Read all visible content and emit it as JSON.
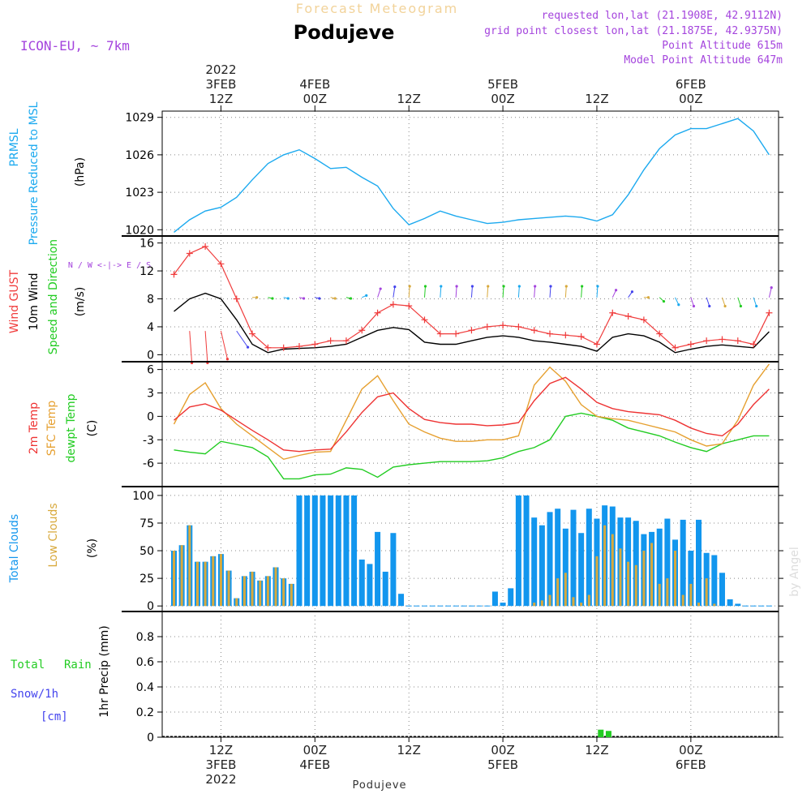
{
  "header": {
    "top_title": "Forecast Meteogram",
    "location": "Podujeve",
    "model": "ICON-EU, ~ 7km",
    "requested": "requested lon,lat (21.1908E, 42.9112N)",
    "grid_point": "grid point closest lon,lat (21.1875E, 42.9375N)",
    "point_altitude": "Point Altitude 615m",
    "model_altitude": "Model Point Altitude 647m",
    "footer_location": "Podujeve",
    "watermark": "by Angel"
  },
  "colors": {
    "pressure": "#1ba9ef",
    "gust": "#f03c3c",
    "wind": "#000000",
    "temp2m": "#ee3333",
    "sfc": "#e6a030",
    "dew": "#22cc22",
    "total_clouds": "#1296ee",
    "low_clouds": "#d8a93c",
    "rain": "#22cc22",
    "snow": "#4444ee",
    "violet": "#a444dd"
  },
  "chart_data": [
    {
      "type": "line",
      "title": "PRMSL Pressure Reduced to MSL",
      "ylabel": "(hPa)",
      "ylabel_lines": [
        "PRMSL",
        "Pressure Reduced to MSL"
      ],
      "ylim": [
        1019.5,
        1029.5
      ],
      "yticks": [
        "1020",
        "1023",
        "1026",
        "1029"
      ],
      "x_hours": [
        0,
        2,
        4,
        6,
        8,
        10,
        12,
        14,
        16,
        18,
        20,
        22,
        24,
        26,
        28,
        30,
        32,
        34,
        36,
        38,
        40,
        42,
        44,
        46,
        48,
        50,
        52,
        54,
        56,
        58,
        60,
        62,
        64,
        66,
        68,
        70,
        72,
        74,
        76
      ],
      "series": [
        {
          "name": "PRMSL",
          "values": [
            1019.8,
            1020.8,
            1021.5,
            1021.8,
            1022.6,
            1024.0,
            1025.3,
            1026.0,
            1026.4,
            1025.7,
            1024.9,
            1025.0,
            1024.2,
            1023.5,
            1021.7,
            1020.4,
            1020.9,
            1021.5,
            1021.1,
            1020.8,
            1020.5,
            1020.6,
            1020.8,
            1020.9,
            1021.0,
            1021.1,
            1021.0,
            1020.7,
            1021.2,
            1022.8,
            1024.8,
            1026.5,
            1027.6,
            1028.1,
            1028.1,
            1028.5,
            1028.9,
            1027.9,
            1026.0
          ]
        }
      ]
    },
    {
      "type": "line",
      "title": "Wind GUST / 10m Wind Speed and Direction",
      "ylabel": "(m/s)",
      "ylabel_lines": [
        "Wind GUST",
        "10m Wind",
        "Speed and Direction"
      ],
      "ylim": [
        -1,
        17
      ],
      "yticks": [
        "0",
        "4",
        "8",
        "12",
        "16"
      ],
      "compass": "N / W <-|-> E / S",
      "x_hours": [
        0,
        2,
        4,
        6,
        8,
        10,
        12,
        14,
        16,
        18,
        20,
        22,
        24,
        26,
        28,
        30,
        32,
        34,
        36,
        38,
        40,
        42,
        44,
        46,
        48,
        50,
        52,
        54,
        56,
        58,
        60,
        62,
        64,
        66,
        68,
        70,
        72,
        74,
        76
      ],
      "series": [
        {
          "name": "Wind GUST",
          "values": [
            11.5,
            14.5,
            15.5,
            13.0,
            8.0,
            3.0,
            1.0,
            1.0,
            1.2,
            1.5,
            2.0,
            2.0,
            3.5,
            6.0,
            7.2,
            7.0,
            5.0,
            3.0,
            3.0,
            3.5,
            4.0,
            4.2,
            4.0,
            3.5,
            3.0,
            2.8,
            2.6,
            1.5,
            6.0,
            5.5,
            5.0,
            3.0,
            1.0,
            1.5,
            2.0,
            2.2,
            2.0,
            1.5,
            6.0
          ]
        },
        {
          "name": "10m Wind",
          "values": [
            6.2,
            8.0,
            8.8,
            8.0,
            5.0,
            1.5,
            0.3,
            0.8,
            0.9,
            1.0,
            1.2,
            1.5,
            2.5,
            3.5,
            3.9,
            3.6,
            1.8,
            1.5,
            1.5,
            2.0,
            2.5,
            2.7,
            2.5,
            2.0,
            1.8,
            1.5,
            1.2,
            0.5,
            2.5,
            3.0,
            2.7,
            1.8,
            0.3,
            0.8,
            1.2,
            1.4,
            1.2,
            1.0,
            3.3
          ]
        }
      ],
      "wind_direction_deg": [
        10,
        10,
        10,
        30,
        60,
        90,
        95,
        95,
        95,
        95,
        95,
        95,
        80,
        40,
        20,
        10,
        10,
        10,
        10,
        10,
        10,
        10,
        10,
        10,
        10,
        10,
        10,
        10,
        50,
        60,
        90,
        110,
        130,
        140,
        140,
        140,
        140,
        140,
        30
      ]
    },
    {
      "type": "line",
      "title": "2m Temp / SFC Temp / dewpt Temp",
      "ylabel": "(C)",
      "ylabel_lines": [
        "2m Temp",
        "SFC Temp",
        "dewpt Temp"
      ],
      "ylim": [
        -9,
        7
      ],
      "yticks": [
        "-6",
        "-3",
        "0",
        "3",
        "6"
      ],
      "x_hours": [
        0,
        2,
        4,
        6,
        8,
        10,
        12,
        14,
        16,
        18,
        20,
        22,
        24,
        26,
        28,
        30,
        32,
        34,
        36,
        38,
        40,
        42,
        44,
        46,
        48,
        50,
        52,
        54,
        56,
        58,
        60,
        62,
        64,
        66,
        68,
        70,
        72,
        74,
        76
      ],
      "series": [
        {
          "name": "2m Temp",
          "values": [
            -0.5,
            1.2,
            1.6,
            0.8,
            -0.5,
            -1.8,
            -3.0,
            -4.3,
            -4.5,
            -4.3,
            -4.2,
            -2.0,
            0.5,
            2.5,
            3.0,
            1.0,
            -0.4,
            -0.8,
            -1.0,
            -1.0,
            -1.2,
            -1.1,
            -0.8,
            2.0,
            4.2,
            5.0,
            3.5,
            1.8,
            1.0,
            0.6,
            0.4,
            0.2,
            -0.5,
            -1.5,
            -2.2,
            -2.5,
            -1.0,
            1.5,
            3.5
          ]
        },
        {
          "name": "SFC Temp",
          "values": [
            -1.0,
            2.8,
            4.3,
            1.0,
            -1.0,
            -2.5,
            -4.0,
            -5.5,
            -5.0,
            -4.6,
            -4.5,
            -0.5,
            3.5,
            5.2,
            2.0,
            -1.0,
            -2.0,
            -2.8,
            -3.2,
            -3.2,
            -3.0,
            -3.0,
            -2.5,
            4.0,
            6.3,
            4.5,
            1.5,
            0.0,
            -0.3,
            -0.5,
            -1.0,
            -1.5,
            -2.0,
            -3.0,
            -3.8,
            -3.5,
            -0.5,
            4.0,
            6.7
          ]
        },
        {
          "name": "dewpt Temp",
          "values": [
            -4.3,
            -4.6,
            -4.8,
            -3.2,
            -3.6,
            -4.0,
            -5.2,
            -8.0,
            -8.0,
            -7.5,
            -7.4,
            -6.6,
            -6.8,
            -7.8,
            -6.5,
            -6.2,
            -6.0,
            -5.8,
            -5.8,
            -5.8,
            -5.7,
            -5.3,
            -4.5,
            -4.0,
            -3.0,
            0.0,
            0.4,
            0.0,
            -0.5,
            -1.5,
            -2.0,
            -2.5,
            -3.3,
            -4.0,
            -4.5,
            -3.5,
            -3.0,
            -2.5,
            -2.5
          ]
        }
      ]
    },
    {
      "type": "bar",
      "title": "Total Clouds / Low Clouds",
      "ylabel": "(%)",
      "ylabel_lines": [
        "Total Clouds",
        "Low Clouds"
      ],
      "ylim": [
        -5,
        108
      ],
      "yticks": [
        "0",
        "25",
        "50",
        "75",
        "100"
      ],
      "x_hours": [
        0,
        1,
        2,
        3,
        4,
        5,
        6,
        7,
        8,
        9,
        10,
        11,
        12,
        13,
        14,
        15,
        16,
        17,
        18,
        19,
        20,
        21,
        22,
        23,
        24,
        25,
        26,
        27,
        28,
        29,
        30,
        31,
        32,
        33,
        34,
        35,
        36,
        37,
        38,
        39,
        40,
        41,
        42,
        43,
        44,
        45,
        46,
        47,
        48,
        49,
        50,
        51,
        52,
        53,
        54,
        55,
        56,
        57,
        58,
        59,
        60,
        61,
        62,
        63,
        64,
        65,
        66,
        67,
        68,
        69,
        70,
        71,
        72,
        73,
        74,
        75,
        76
      ],
      "series": [
        {
          "name": "Total Clouds",
          "values": [
            50,
            55,
            73,
            40,
            40,
            45,
            47,
            32,
            7,
            27,
            31,
            23,
            27,
            35,
            25,
            20,
            100,
            100,
            100,
            100,
            100,
            100,
            100,
            100,
            42,
            38,
            67,
            31,
            66,
            11,
            0,
            0,
            0,
            0,
            0,
            0,
            0,
            0,
            0,
            0,
            0,
            13,
            3,
            16,
            100,
            100,
            80,
            73,
            85,
            88,
            70,
            87,
            66,
            88,
            79,
            91,
            90,
            80,
            80,
            77,
            65,
            67,
            70,
            79,
            60,
            78,
            50,
            78,
            48,
            46,
            30,
            6,
            2,
            0,
            0,
            0,
            0
          ]
        },
        {
          "name": "Low Clouds",
          "values": [
            50,
            55,
            73,
            40,
            40,
            45,
            47,
            32,
            7,
            27,
            31,
            23,
            27,
            35,
            25,
            20,
            0,
            0,
            0,
            0,
            0,
            0,
            0,
            0,
            0,
            0,
            0,
            0,
            0,
            0,
            0,
            0,
            0,
            0,
            0,
            0,
            0,
            0,
            0,
            0,
            0,
            0,
            0,
            0,
            0,
            0,
            3,
            5,
            10,
            25,
            30,
            8,
            3,
            10,
            45,
            73,
            65,
            52,
            40,
            37,
            50,
            57,
            20,
            25,
            50,
            10,
            20,
            3,
            25,
            2,
            0,
            0,
            0,
            0,
            0,
            0,
            0
          ]
        }
      ]
    },
    {
      "type": "bar",
      "title": "1hr Precip (mm)",
      "ylabel": "1hr Precip (mm)",
      "ylabel_lines": [
        "Total",
        "Rain",
        "Snow/1h",
        "[cm]"
      ],
      "ylim": [
        0,
        1.0
      ],
      "yticks": [
        "0",
        "0.2",
        "0.4",
        "0.6",
        "0.8"
      ],
      "bars": [
        {
          "x_hour": 54.5,
          "value": 0.06,
          "series": "Total Rain"
        },
        {
          "x_hour": 55.5,
          "value": 0.05,
          "series": "Total Rain"
        }
      ]
    }
  ],
  "time_axis": {
    "top_ticks": [
      {
        "hour": 6,
        "lines": [
          "2022",
          "3FEB",
          "12Z"
        ]
      },
      {
        "hour": 18,
        "lines": [
          "4FEB",
          "00Z"
        ]
      },
      {
        "hour": 30,
        "lines": [
          "12Z"
        ]
      },
      {
        "hour": 42,
        "lines": [
          "5FEB",
          "00Z"
        ]
      },
      {
        "hour": 54,
        "lines": [
          "12Z"
        ]
      },
      {
        "hour": 66,
        "lines": [
          "6FEB",
          "00Z"
        ]
      }
    ],
    "bottom_ticks": [
      {
        "hour": 6,
        "lines": [
          "12Z",
          "3FEB",
          "2022"
        ]
      },
      {
        "hour": 18,
        "lines": [
          "00Z",
          "4FEB"
        ]
      },
      {
        "hour": 30,
        "lines": [
          "12Z"
        ]
      },
      {
        "hour": 42,
        "lines": [
          "00Z",
          "5FEB"
        ]
      },
      {
        "hour": 54,
        "lines": [
          "12Z"
        ]
      },
      {
        "hour": 66,
        "lines": [
          "00Z",
          "6FEB"
        ]
      }
    ]
  }
}
